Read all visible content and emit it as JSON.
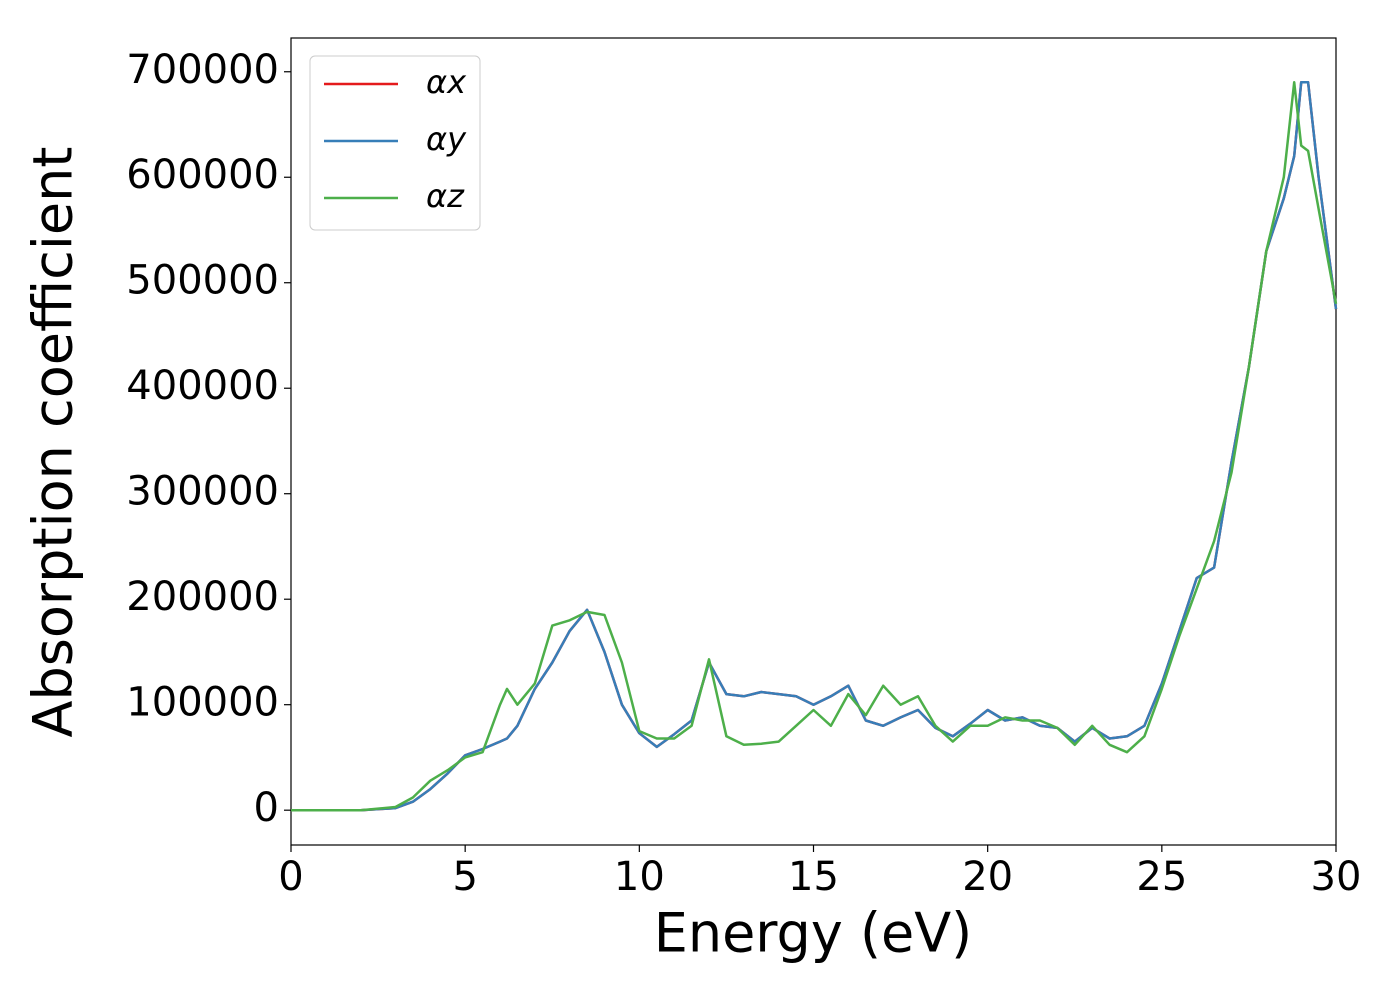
{
  "chart_data": {
    "type": "line",
    "xlabel": "Energy (eV)",
    "ylabel": "Absorption coefficient",
    "x": [
      0,
      1,
      2,
      3,
      3.5,
      4,
      4.5,
      5,
      5.5,
      6,
      6.2,
      6.5,
      7,
      7.5,
      8,
      8.5,
      9,
      9.5,
      10,
      10.5,
      11,
      11.5,
      12,
      12.5,
      13,
      13.5,
      14,
      14.5,
      15,
      15.5,
      16,
      16.5,
      17,
      17.5,
      18,
      18.5,
      19,
      19.5,
      20,
      20.5,
      21,
      21.5,
      22,
      22.5,
      23,
      23.5,
      24,
      24.5,
      25,
      25.5,
      26,
      26.5,
      27,
      27.5,
      28,
      28.5,
      28.8,
      29,
      29.2,
      29.5,
      30
    ],
    "series": [
      {
        "name": "αx",
        "color": "#e41a1c",
        "values": [
          0,
          0,
          0,
          2000,
          8000,
          20000,
          35000,
          52000,
          58000,
          65000,
          68000,
          80000,
          115000,
          140000,
          170000,
          190000,
          150000,
          100000,
          73000,
          60000,
          72000,
          85000,
          140000,
          110000,
          108000,
          112000,
          110000,
          108000,
          100000,
          108000,
          118000,
          85000,
          80000,
          88000,
          95000,
          78000,
          70000,
          82000,
          95000,
          85000,
          88000,
          80000,
          78000,
          65000,
          78000,
          68000,
          70000,
          80000,
          120000,
          170000,
          220000,
          230000,
          330000,
          420000,
          530000,
          580000,
          620000,
          690000,
          690000,
          600000,
          475000
        ]
      },
      {
        "name": "αy",
        "color": "#377eb8",
        "values": [
          0,
          0,
          0,
          2000,
          8000,
          20000,
          35000,
          52000,
          58000,
          65000,
          68000,
          80000,
          115000,
          140000,
          170000,
          190000,
          150000,
          100000,
          73000,
          60000,
          72000,
          85000,
          140000,
          110000,
          108000,
          112000,
          110000,
          108000,
          100000,
          108000,
          118000,
          85000,
          80000,
          88000,
          95000,
          78000,
          70000,
          82000,
          95000,
          85000,
          88000,
          80000,
          78000,
          65000,
          78000,
          68000,
          70000,
          80000,
          120000,
          170000,
          220000,
          230000,
          330000,
          420000,
          530000,
          580000,
          620000,
          690000,
          690000,
          600000,
          475000
        ]
      },
      {
        "name": "αz",
        "color": "#4daf4a",
        "values": [
          0,
          0,
          0,
          3000,
          12000,
          28000,
          38000,
          50000,
          55000,
          100000,
          115000,
          100000,
          120000,
          175000,
          180000,
          188000,
          185000,
          140000,
          75000,
          68000,
          68000,
          80000,
          143000,
          70000,
          62000,
          63000,
          65000,
          80000,
          95000,
          80000,
          110000,
          90000,
          118000,
          100000,
          108000,
          80000,
          65000,
          80000,
          80000,
          88000,
          85000,
          85000,
          78000,
          62000,
          80000,
          62000,
          55000,
          70000,
          115000,
          165000,
          210000,
          255000,
          320000,
          420000,
          530000,
          600000,
          690000,
          630000,
          625000,
          570000,
          480000
        ]
      }
    ],
    "xlim": [
      0,
      30
    ],
    "xticks": [
      0,
      5,
      10,
      15,
      20,
      25,
      30
    ],
    "ylim": [
      -33000,
      732000
    ],
    "yticks": [
      0,
      100000,
      200000,
      300000,
      400000,
      500000,
      600000,
      700000
    ],
    "legend": "upper left",
    "grid": false
  }
}
